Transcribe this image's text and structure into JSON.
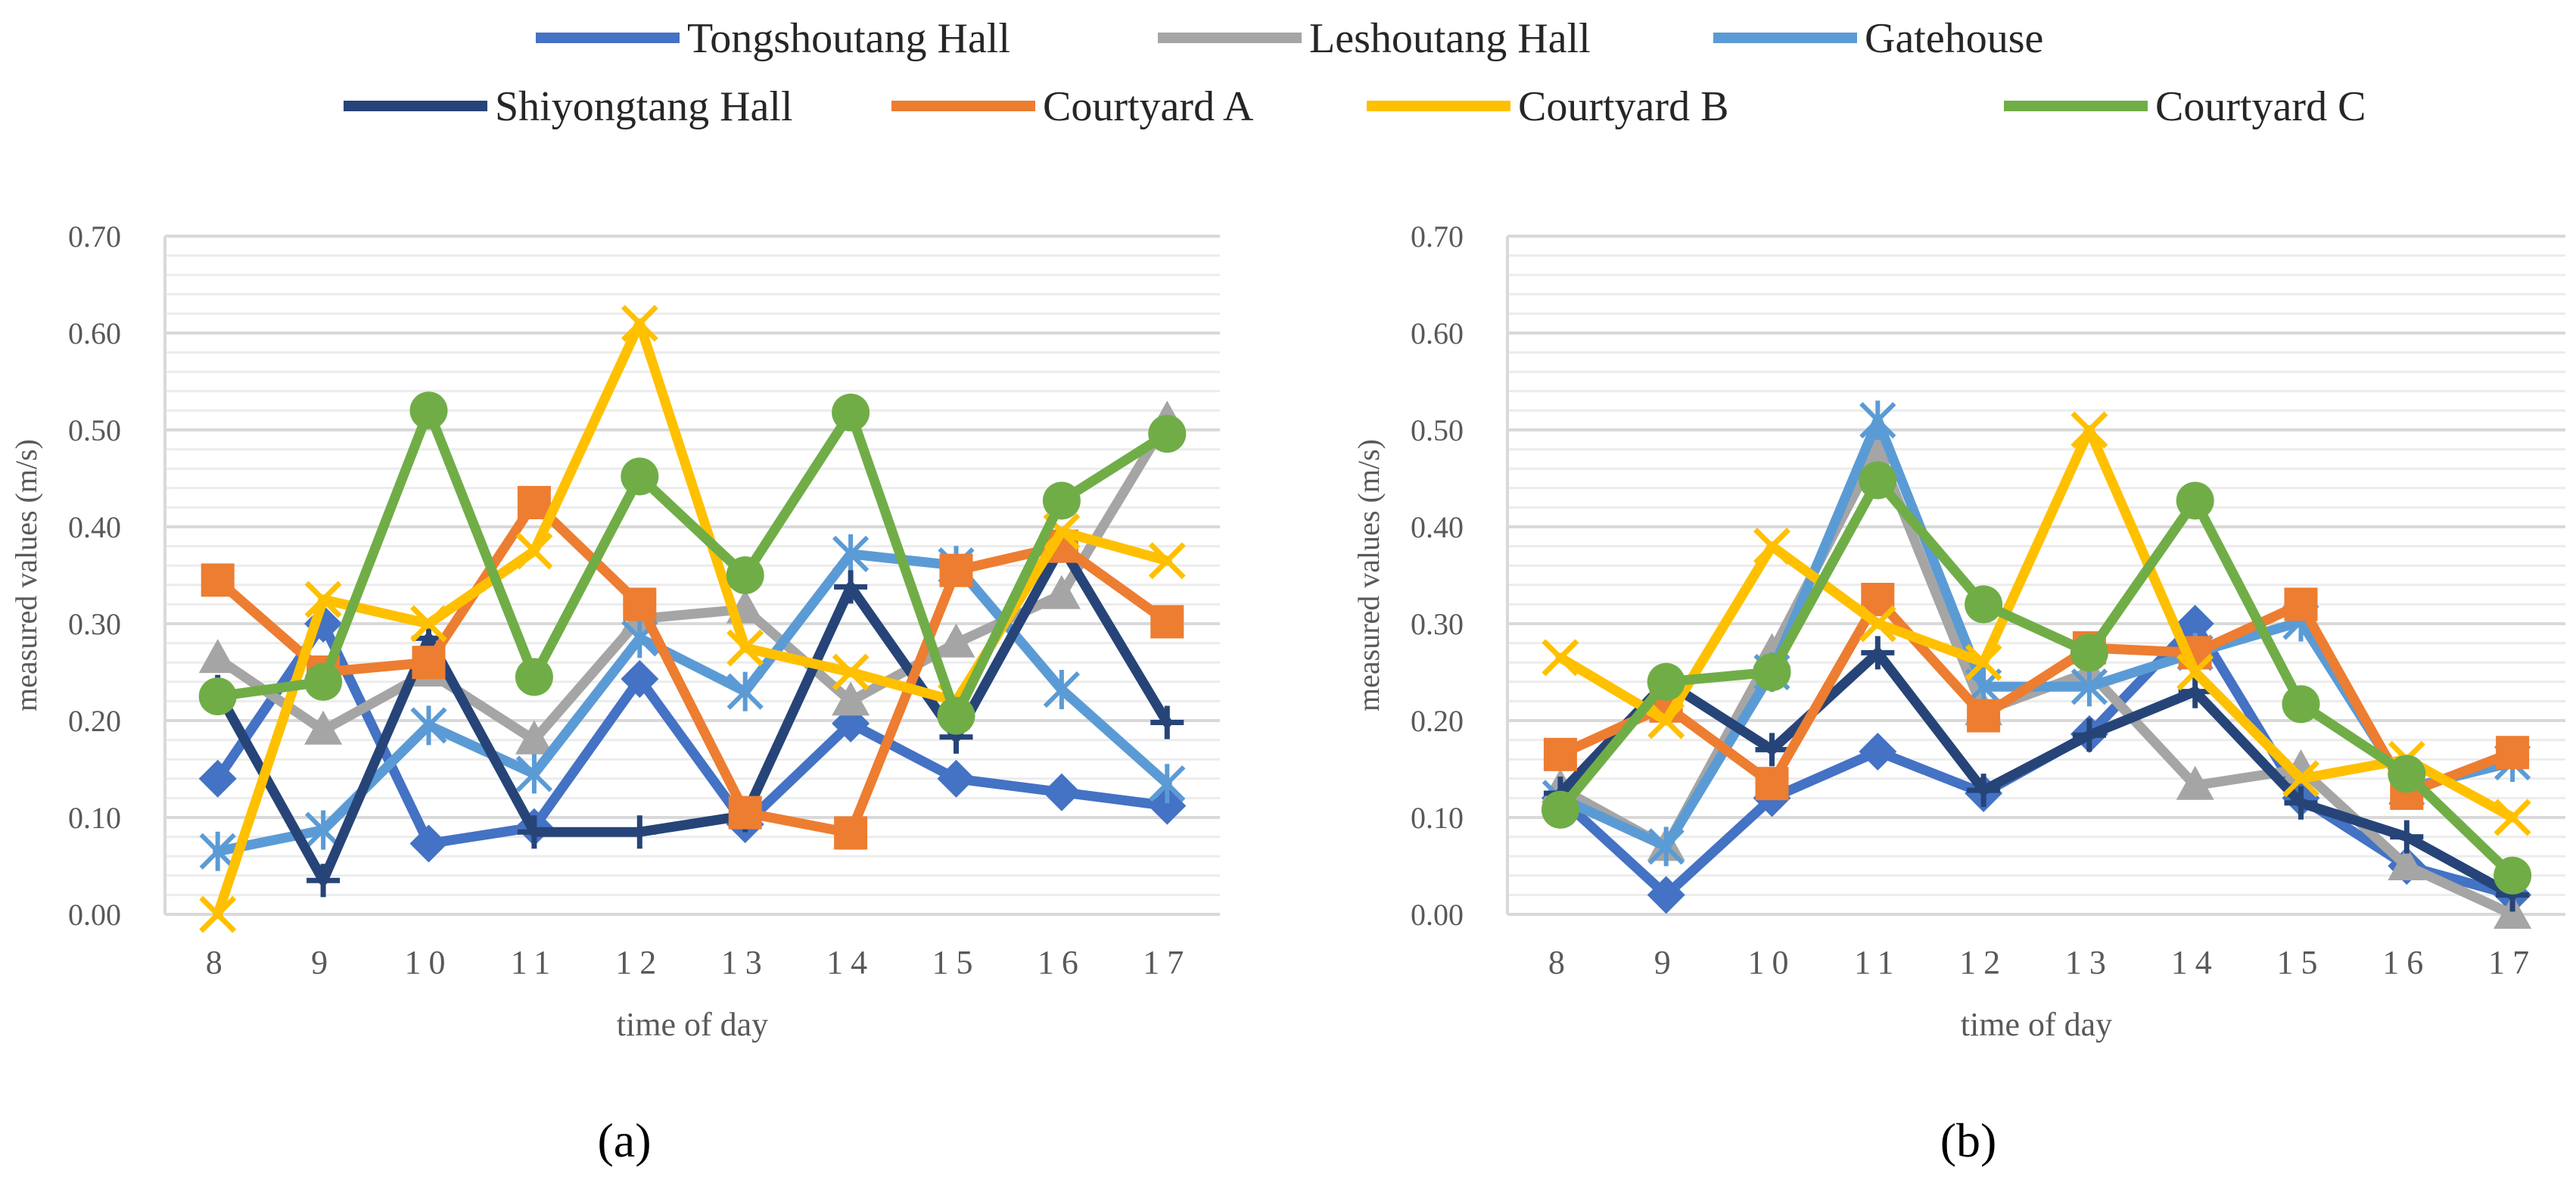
{
  "legend": {
    "items": [
      {
        "name": "Tongshoutang Hall",
        "color": "#4472C4"
      },
      {
        "name": "Leshoutang Hall",
        "color": "#A5A5A5"
      },
      {
        "name": "Gatehouse",
        "color": "#5B9BD5"
      },
      {
        "name": "Shiyongtang Hall",
        "color": "#264478"
      },
      {
        "name": "Courtyard A",
        "color": "#ED7D31"
      },
      {
        "name": "Courtyard B",
        "color": "#FFC000"
      },
      {
        "name": "Courtyard C",
        "color": "#70AD47"
      }
    ]
  },
  "chart_data": [
    {
      "type": "line",
      "panel_label": "(a)",
      "title": "",
      "xlabel": "time of day",
      "ylabel": "measured values (m/s)",
      "categories": [
        "8",
        "9",
        "10",
        "11",
        "12",
        "13",
        "14",
        "15",
        "16",
        "17"
      ],
      "yticks": [
        "0.00",
        "0.10",
        "0.20",
        "0.30",
        "0.40",
        "0.50",
        "0.60",
        "0.70"
      ],
      "ylim": [
        0,
        0.7
      ],
      "series": [
        {
          "name": "Tongshoutang Hall",
          "marker": "diamond",
          "color": "#4472C4",
          "values": [
            0.14,
            0.3,
            0.073,
            0.09,
            0.243,
            0.093,
            0.197,
            0.14,
            0.126,
            0.112
          ]
        },
        {
          "name": "Leshoutang Hall",
          "marker": "triangle",
          "color": "#A5A5A5",
          "values": [
            0.264,
            0.19,
            0.25,
            0.18,
            0.305,
            0.315,
            0.22,
            0.28,
            0.33,
            0.51
          ]
        },
        {
          "name": "Gatehouse",
          "marker": "asterisk",
          "color": "#5B9BD5",
          "values": [
            0.065,
            0.087,
            0.195,
            0.145,
            0.285,
            0.23,
            0.372,
            0.36,
            0.232,
            0.135
          ]
        },
        {
          "name": "Shiyongtang Hall",
          "marker": "plus",
          "color": "#264478",
          "values": [
            0.23,
            0.035,
            0.285,
            0.085,
            0.085,
            0.102,
            0.338,
            0.183,
            0.38,
            0.198
          ]
        },
        {
          "name": "Courtyard A",
          "marker": "square",
          "color": "#ED7D31",
          "values": [
            0.345,
            0.25,
            0.26,
            0.425,
            0.32,
            0.105,
            0.084,
            0.355,
            0.38,
            0.302
          ]
        },
        {
          "name": "Courtyard B",
          "marker": "x",
          "color": "#FFC000",
          "values": [
            0.0,
            0.325,
            0.3,
            0.375,
            0.61,
            0.275,
            0.25,
            0.22,
            0.395,
            0.365
          ]
        },
        {
          "name": "Courtyard C",
          "marker": "circle",
          "color": "#70AD47",
          "values": [
            0.225,
            0.24,
            0.52,
            0.245,
            0.452,
            0.35,
            0.518,
            0.205,
            0.427,
            0.496
          ]
        }
      ]
    },
    {
      "type": "line",
      "panel_label": "(b)",
      "title": "",
      "xlabel": "time of day",
      "ylabel": "measured values (m/s)",
      "categories": [
        "8",
        "9",
        "10",
        "11",
        "12",
        "13",
        "14",
        "15",
        "16",
        "17"
      ],
      "yticks": [
        "0.00",
        "0.10",
        "0.20",
        "0.30",
        "0.40",
        "0.50",
        "0.60",
        "0.70"
      ],
      "ylim": [
        0,
        0.7
      ],
      "series": [
        {
          "name": "Tongshoutang Hall",
          "marker": "diamond",
          "color": "#4472C4",
          "values": [
            0.12,
            0.02,
            0.12,
            0.168,
            0.125,
            0.186,
            0.3,
            0.12,
            0.05,
            0.02
          ]
        },
        {
          "name": "Leshoutang Hall",
          "marker": "triangle",
          "color": "#A5A5A5",
          "values": [
            0.13,
            0.07,
            0.27,
            0.48,
            0.21,
            0.25,
            0.133,
            0.15,
            0.05,
            0.0
          ]
        },
        {
          "name": "Gatehouse",
          "marker": "asterisk",
          "color": "#5B9BD5",
          "values": [
            0.12,
            0.07,
            0.25,
            0.51,
            0.235,
            0.235,
            0.27,
            0.302,
            0.13,
            0.157
          ]
        },
        {
          "name": "Shiyongtang Hall",
          "marker": "plus",
          "color": "#264478",
          "values": [
            0.125,
            0.24,
            0.17,
            0.27,
            0.128,
            0.185,
            0.23,
            0.115,
            0.08,
            0.02
          ]
        },
        {
          "name": "Courtyard A",
          "marker": "square",
          "color": "#ED7D31",
          "values": [
            0.165,
            0.215,
            0.135,
            0.325,
            0.205,
            0.275,
            0.27,
            0.32,
            0.125,
            0.167
          ]
        },
        {
          "name": "Courtyard B",
          "marker": "x",
          "color": "#FFC000",
          "values": [
            0.265,
            0.2,
            0.38,
            0.3,
            0.26,
            0.5,
            0.25,
            0.14,
            0.16,
            0.1
          ]
        },
        {
          "name": "Courtyard C",
          "marker": "circle",
          "color": "#70AD47",
          "values": [
            0.108,
            0.24,
            0.25,
            0.448,
            0.32,
            0.27,
            0.427,
            0.217,
            0.145,
            0.04
          ]
        }
      ]
    }
  ]
}
